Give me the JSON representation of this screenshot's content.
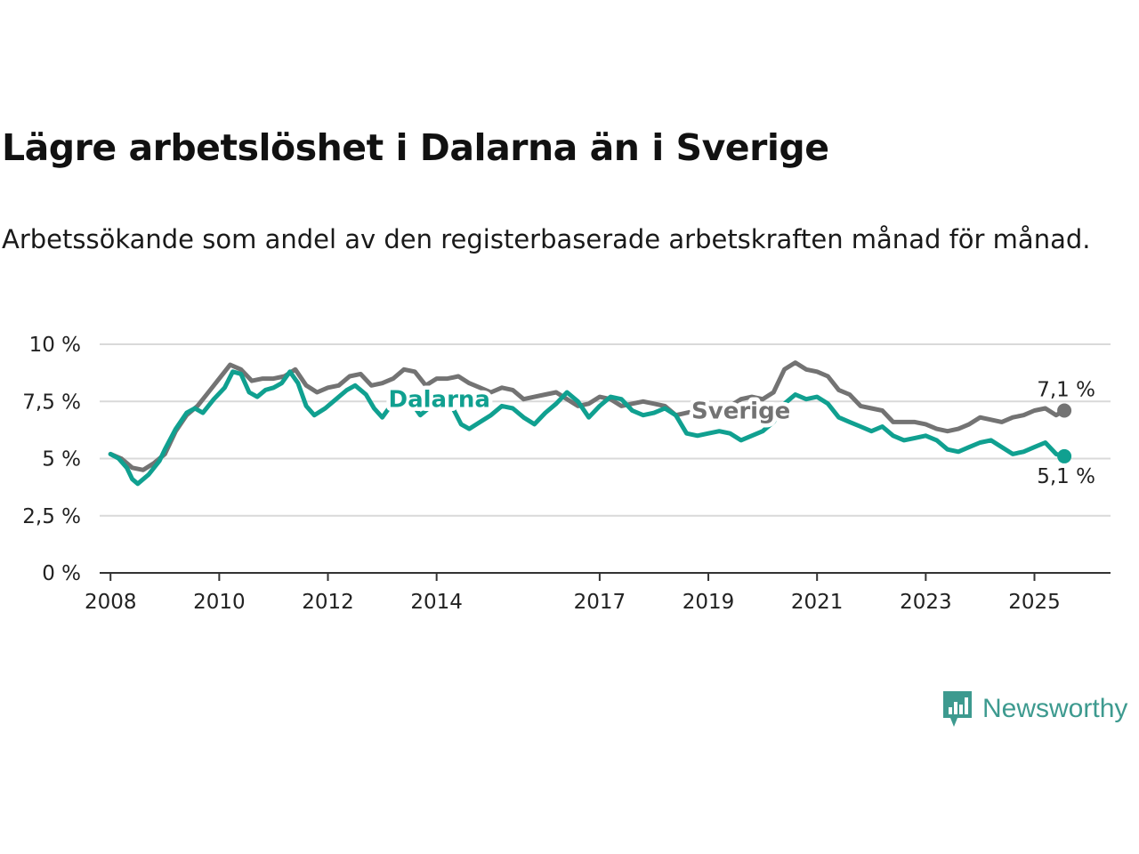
{
  "title": "Lägre arbetslöshet i Dalarna än i Sverige",
  "subtitle": "Arbetssökande som andel av den registerbaserade arbetskraften månad för månad.",
  "brand": {
    "name": "Newsworthy",
    "color": "#3d9a8f",
    "logo": "newsworthy-logo-icon"
  },
  "colors": {
    "sverige": "#737373",
    "dalarna": "#10a090",
    "grid": "#d9d9d9",
    "axis": "#333333"
  },
  "chart_data": {
    "type": "line",
    "xlim": [
      2007.8,
      2026.4
    ],
    "ylim": [
      0,
      10
    ],
    "xticks": [
      2008,
      2010,
      2012,
      2014,
      2017,
      2019,
      2021,
      2023,
      2025
    ],
    "xtick_labels": [
      "2008",
      "2010",
      "2012",
      "2014",
      "2017",
      "2019",
      "2021",
      "2023",
      "2025"
    ],
    "yticks": [
      0,
      2.5,
      5,
      7.5,
      10
    ],
    "ytick_labels": [
      "0 %",
      "2,5 %",
      "5 %",
      "7,5 %",
      "10 %"
    ],
    "grid": true,
    "legend": "inline labels",
    "series": [
      {
        "name": "Sverige",
        "end_label": "7,1 %",
        "points": [
          [
            2008.0,
            5.2
          ],
          [
            2008.2,
            5.0
          ],
          [
            2008.4,
            4.6
          ],
          [
            2008.6,
            4.5
          ],
          [
            2008.8,
            4.8
          ],
          [
            2009.0,
            5.2
          ],
          [
            2009.2,
            6.2
          ],
          [
            2009.4,
            6.9
          ],
          [
            2009.6,
            7.3
          ],
          [
            2009.8,
            7.9
          ],
          [
            2010.0,
            8.5
          ],
          [
            2010.2,
            9.1
          ],
          [
            2010.4,
            8.9
          ],
          [
            2010.6,
            8.4
          ],
          [
            2010.8,
            8.5
          ],
          [
            2011.0,
            8.5
          ],
          [
            2011.2,
            8.6
          ],
          [
            2011.4,
            8.9
          ],
          [
            2011.6,
            8.2
          ],
          [
            2011.8,
            7.9
          ],
          [
            2012.0,
            8.1
          ],
          [
            2012.2,
            8.2
          ],
          [
            2012.4,
            8.6
          ],
          [
            2012.6,
            8.7
          ],
          [
            2012.8,
            8.2
          ],
          [
            2013.0,
            8.3
          ],
          [
            2013.2,
            8.5
          ],
          [
            2013.4,
            8.9
          ],
          [
            2013.6,
            8.8
          ],
          [
            2013.8,
            8.2
          ],
          [
            2014.0,
            8.5
          ],
          [
            2014.2,
            8.5
          ],
          [
            2014.4,
            8.6
          ],
          [
            2014.6,
            8.3
          ],
          [
            2014.8,
            8.1
          ],
          [
            2015.0,
            7.9
          ],
          [
            2015.2,
            8.1
          ],
          [
            2015.4,
            8.0
          ],
          [
            2015.6,
            7.6
          ],
          [
            2015.8,
            7.7
          ],
          [
            2016.0,
            7.8
          ],
          [
            2016.2,
            7.9
          ],
          [
            2016.4,
            7.6
          ],
          [
            2016.6,
            7.3
          ],
          [
            2016.8,
            7.4
          ],
          [
            2017.0,
            7.7
          ],
          [
            2017.2,
            7.6
          ],
          [
            2017.4,
            7.3
          ],
          [
            2017.6,
            7.4
          ],
          [
            2017.8,
            7.5
          ],
          [
            2018.0,
            7.4
          ],
          [
            2018.2,
            7.3
          ],
          [
            2018.4,
            6.9
          ],
          [
            2018.6,
            7.0
          ],
          [
            2018.8,
            7.1
          ],
          [
            2019.0,
            7.1
          ],
          [
            2019.2,
            7.2
          ],
          [
            2019.4,
            7.3
          ],
          [
            2019.6,
            7.6
          ],
          [
            2019.8,
            7.7
          ],
          [
            2020.0,
            7.6
          ],
          [
            2020.2,
            7.9
          ],
          [
            2020.4,
            8.9
          ],
          [
            2020.6,
            9.2
          ],
          [
            2020.8,
            8.9
          ],
          [
            2021.0,
            8.8
          ],
          [
            2021.2,
            8.6
          ],
          [
            2021.4,
            8.0
          ],
          [
            2021.6,
            7.8
          ],
          [
            2021.8,
            7.3
          ],
          [
            2022.0,
            7.2
          ],
          [
            2022.2,
            7.1
          ],
          [
            2022.4,
            6.6
          ],
          [
            2022.6,
            6.6
          ],
          [
            2022.8,
            6.6
          ],
          [
            2023.0,
            6.5
          ],
          [
            2023.2,
            6.3
          ],
          [
            2023.4,
            6.2
          ],
          [
            2023.6,
            6.3
          ],
          [
            2023.8,
            6.5
          ],
          [
            2024.0,
            6.8
          ],
          [
            2024.2,
            6.7
          ],
          [
            2024.4,
            6.6
          ],
          [
            2024.6,
            6.8
          ],
          [
            2024.8,
            6.9
          ],
          [
            2025.0,
            7.1
          ],
          [
            2025.2,
            7.2
          ],
          [
            2025.4,
            6.9
          ],
          [
            2025.55,
            7.1
          ]
        ]
      },
      {
        "name": "Dalarna",
        "end_label": "5,1 %",
        "points": [
          [
            2008.0,
            5.2
          ],
          [
            2008.15,
            5.0
          ],
          [
            2008.3,
            4.6
          ],
          [
            2008.4,
            4.1
          ],
          [
            2008.5,
            3.9
          ],
          [
            2008.7,
            4.3
          ],
          [
            2008.9,
            4.9
          ],
          [
            2009.0,
            5.4
          ],
          [
            2009.2,
            6.3
          ],
          [
            2009.4,
            7.0
          ],
          [
            2009.55,
            7.2
          ],
          [
            2009.7,
            7.0
          ],
          [
            2009.9,
            7.6
          ],
          [
            2010.1,
            8.1
          ],
          [
            2010.25,
            8.8
          ],
          [
            2010.4,
            8.7
          ],
          [
            2010.55,
            7.9
          ],
          [
            2010.7,
            7.7
          ],
          [
            2010.85,
            8.0
          ],
          [
            2011.0,
            8.1
          ],
          [
            2011.15,
            8.3
          ],
          [
            2011.3,
            8.8
          ],
          [
            2011.45,
            8.3
          ],
          [
            2011.6,
            7.3
          ],
          [
            2011.75,
            6.9
          ],
          [
            2011.95,
            7.2
          ],
          [
            2012.15,
            7.6
          ],
          [
            2012.35,
            8.0
          ],
          [
            2012.5,
            8.2
          ],
          [
            2012.7,
            7.8
          ],
          [
            2012.85,
            7.2
          ],
          [
            2013.0,
            6.8
          ],
          [
            2013.15,
            7.3
          ],
          [
            2013.35,
            7.8
          ],
          [
            2013.55,
            7.4
          ],
          [
            2013.7,
            6.9
          ],
          [
            2013.9,
            7.3
          ],
          [
            2014.1,
            7.7
          ],
          [
            2014.3,
            7.2
          ],
          [
            2014.45,
            6.5
          ],
          [
            2014.6,
            6.3
          ],
          [
            2014.8,
            6.6
          ],
          [
            2015.0,
            6.9
          ],
          [
            2015.2,
            7.3
          ],
          [
            2015.4,
            7.2
          ],
          [
            2015.6,
            6.8
          ],
          [
            2015.8,
            6.5
          ],
          [
            2016.0,
            7.0
          ],
          [
            2016.2,
            7.4
          ],
          [
            2016.4,
            7.9
          ],
          [
            2016.6,
            7.5
          ],
          [
            2016.8,
            6.8
          ],
          [
            2017.0,
            7.3
          ],
          [
            2017.2,
            7.7
          ],
          [
            2017.4,
            7.6
          ],
          [
            2017.6,
            7.1
          ],
          [
            2017.8,
            6.9
          ],
          [
            2018.0,
            7.0
          ],
          [
            2018.2,
            7.2
          ],
          [
            2018.4,
            6.9
          ],
          [
            2018.6,
            6.1
          ],
          [
            2018.8,
            6.0
          ],
          [
            2019.0,
            6.1
          ],
          [
            2019.2,
            6.2
          ],
          [
            2019.4,
            6.1
          ],
          [
            2019.6,
            5.8
          ],
          [
            2019.8,
            6.0
          ],
          [
            2020.0,
            6.2
          ],
          [
            2020.2,
            6.6
          ],
          [
            2020.4,
            7.4
          ],
          [
            2020.6,
            7.8
          ],
          [
            2020.8,
            7.6
          ],
          [
            2021.0,
            7.7
          ],
          [
            2021.2,
            7.4
          ],
          [
            2021.4,
            6.8
          ],
          [
            2021.6,
            6.6
          ],
          [
            2021.8,
            6.4
          ],
          [
            2022.0,
            6.2
          ],
          [
            2022.2,
            6.4
          ],
          [
            2022.4,
            6.0
          ],
          [
            2022.6,
            5.8
          ],
          [
            2022.8,
            5.9
          ],
          [
            2023.0,
            6.0
          ],
          [
            2023.2,
            5.8
          ],
          [
            2023.4,
            5.4
          ],
          [
            2023.6,
            5.3
          ],
          [
            2023.8,
            5.5
          ],
          [
            2024.0,
            5.7
          ],
          [
            2024.2,
            5.8
          ],
          [
            2024.4,
            5.5
          ],
          [
            2024.6,
            5.2
          ],
          [
            2024.8,
            5.3
          ],
          [
            2025.0,
            5.5
          ],
          [
            2025.2,
            5.7
          ],
          [
            2025.4,
            5.2
          ],
          [
            2025.55,
            5.1
          ]
        ]
      }
    ]
  }
}
